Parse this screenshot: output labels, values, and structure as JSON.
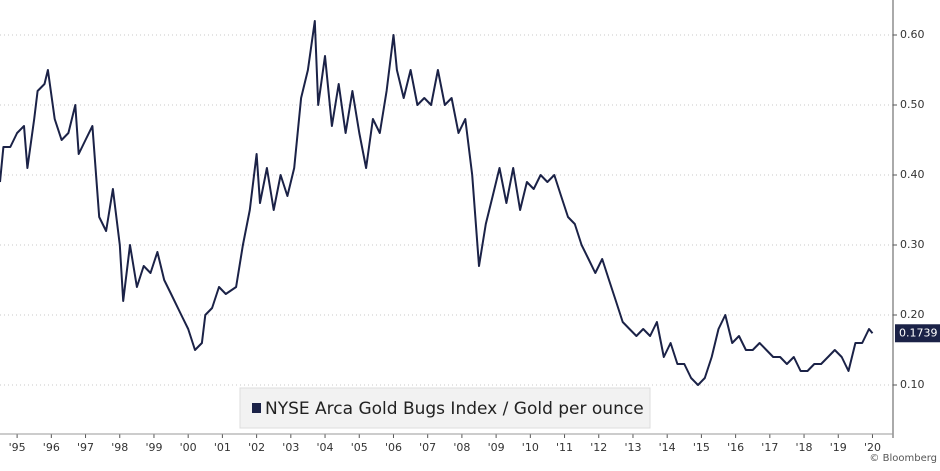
{
  "chart_data": {
    "type": "line",
    "watermark": "© Bloomberg",
    "x": [
      1995.0,
      1995.1,
      1995.3,
      1995.5,
      1995.7,
      1995.8,
      1996.0,
      1996.1,
      1996.3,
      1996.4,
      1996.6,
      1996.8,
      1997.0,
      1997.2,
      1997.3,
      1997.5,
      1997.7,
      1997.9,
      1998.1,
      1998.3,
      1998.5,
      1998.6,
      1998.8,
      1999.0,
      1999.2,
      1999.4,
      1999.6,
      1999.8,
      2000.0,
      2000.3,
      2000.5,
      2000.7,
      2000.9,
      2001.0,
      2001.2,
      2001.4,
      2001.6,
      2001.9,
      2002.1,
      2002.3,
      2002.5,
      2002.6,
      2002.8,
      2003.0,
      2003.2,
      2003.4,
      2003.6,
      2003.8,
      2004.0,
      2004.2,
      2004.3,
      2004.5,
      2004.7,
      2004.9,
      2005.1,
      2005.3,
      2005.5,
      2005.7,
      2005.9,
      2006.1,
      2006.3,
      2006.5,
      2006.6,
      2006.8,
      2007.0,
      2007.2,
      2007.4,
      2007.6,
      2007.8,
      2008.0,
      2008.2,
      2008.4,
      2008.6,
      2008.8,
      2009.0,
      2009.2,
      2009.4,
      2009.6,
      2009.8,
      2010.0,
      2010.2,
      2010.4,
      2010.6,
      2010.8,
      2011.0,
      2011.2,
      2011.4,
      2011.6,
      2011.8,
      2012.0,
      2012.2,
      2012.4,
      2012.6,
      2012.8,
      2013.0,
      2013.2,
      2013.4,
      2013.6,
      2013.8,
      2014.0,
      2014.2,
      2014.4,
      2014.6,
      2014.8,
      2015.0,
      2015.2,
      2015.4,
      2015.6,
      2015.8,
      2016.0,
      2016.2,
      2016.4,
      2016.6,
      2016.8,
      2017.0,
      2017.2,
      2017.4,
      2017.6,
      2017.8,
      2018.0,
      2018.2,
      2018.4,
      2018.6,
      2018.8,
      2019.0,
      2019.2,
      2019.4,
      2019.6,
      2019.8,
      2020.0,
      2020.2,
      2020.4,
      2020.5
    ],
    "series": [
      {
        "name": "NYSE Arca Gold Bugs Index / Gold per ounce",
        "color": "#1b2247",
        "values": [
          0.39,
          0.44,
          0.44,
          0.46,
          0.47,
          0.41,
          0.48,
          0.52,
          0.53,
          0.55,
          0.48,
          0.45,
          0.46,
          0.5,
          0.43,
          0.45,
          0.47,
          0.34,
          0.32,
          0.38,
          0.3,
          0.22,
          0.3,
          0.24,
          0.27,
          0.26,
          0.29,
          0.25,
          0.23,
          0.2,
          0.18,
          0.15,
          0.16,
          0.2,
          0.21,
          0.24,
          0.23,
          0.24,
          0.3,
          0.35,
          0.43,
          0.36,
          0.41,
          0.35,
          0.4,
          0.37,
          0.41,
          0.51,
          0.55,
          0.62,
          0.5,
          0.57,
          0.47,
          0.53,
          0.46,
          0.52,
          0.46,
          0.41,
          0.48,
          0.46,
          0.52,
          0.6,
          0.55,
          0.51,
          0.55,
          0.5,
          0.51,
          0.5,
          0.55,
          0.5,
          0.51,
          0.46,
          0.48,
          0.4,
          0.27,
          0.33,
          0.37,
          0.41,
          0.36,
          0.41,
          0.35,
          0.39,
          0.38,
          0.4,
          0.39,
          0.4,
          0.37,
          0.34,
          0.33,
          0.3,
          0.28,
          0.26,
          0.28,
          0.25,
          0.22,
          0.19,
          0.18,
          0.17,
          0.18,
          0.17,
          0.19,
          0.14,
          0.16,
          0.13,
          0.13,
          0.11,
          0.1,
          0.11,
          0.14,
          0.18,
          0.2,
          0.16,
          0.17,
          0.15,
          0.15,
          0.16,
          0.15,
          0.14,
          0.14,
          0.13,
          0.14,
          0.12,
          0.12,
          0.13,
          0.13,
          0.14,
          0.15,
          0.14,
          0.12,
          0.16,
          0.16,
          0.18,
          0.1739
        ]
      }
    ],
    "xlim": [
      1995,
      2021.1
    ],
    "xticks": [
      {
        "value": 1995.5,
        "label": "'95"
      },
      {
        "value": 1996.5,
        "label": "'96"
      },
      {
        "value": 1997.5,
        "label": "'97"
      },
      {
        "value": 1998.5,
        "label": "'98"
      },
      {
        "value": 1999.5,
        "label": "'99"
      },
      {
        "value": 2000.5,
        "label": "'00"
      },
      {
        "value": 2001.5,
        "label": "'01"
      },
      {
        "value": 2002.5,
        "label": "'02"
      },
      {
        "value": 2003.5,
        "label": "'03"
      },
      {
        "value": 2004.5,
        "label": "'04"
      },
      {
        "value": 2005.5,
        "label": "'05"
      },
      {
        "value": 2006.5,
        "label": "'06"
      },
      {
        "value": 2007.5,
        "label": "'07"
      },
      {
        "value": 2008.5,
        "label": "'08"
      },
      {
        "value": 2009.5,
        "label": "'09"
      },
      {
        "value": 2010.5,
        "label": "'10"
      },
      {
        "value": 2011.5,
        "label": "'11"
      },
      {
        "value": 2012.5,
        "label": "'12"
      },
      {
        "value": 2013.5,
        "label": "'13"
      },
      {
        "value": 2014.5,
        "label": "'14"
      },
      {
        "value": 2015.5,
        "label": "'15"
      },
      {
        "value": 2016.5,
        "label": "'16"
      },
      {
        "value": 2017.5,
        "label": "'17"
      },
      {
        "value": 2018.5,
        "label": "'18"
      },
      {
        "value": 2019.5,
        "label": "'19"
      },
      {
        "value": 2020.5,
        "label": "'20"
      }
    ],
    "ylim": [
      0.03,
      0.65
    ],
    "yticks": [
      {
        "value": 0.1,
        "label": "0.10"
      },
      {
        "value": 0.2,
        "label": "0.20"
      },
      {
        "value": 0.3,
        "label": "0.30"
      },
      {
        "value": 0.4,
        "label": "0.40"
      },
      {
        "value": 0.5,
        "label": "0.50"
      },
      {
        "value": 0.6,
        "label": "0.60"
      }
    ],
    "grid": true,
    "legend": "bottom"
  }
}
